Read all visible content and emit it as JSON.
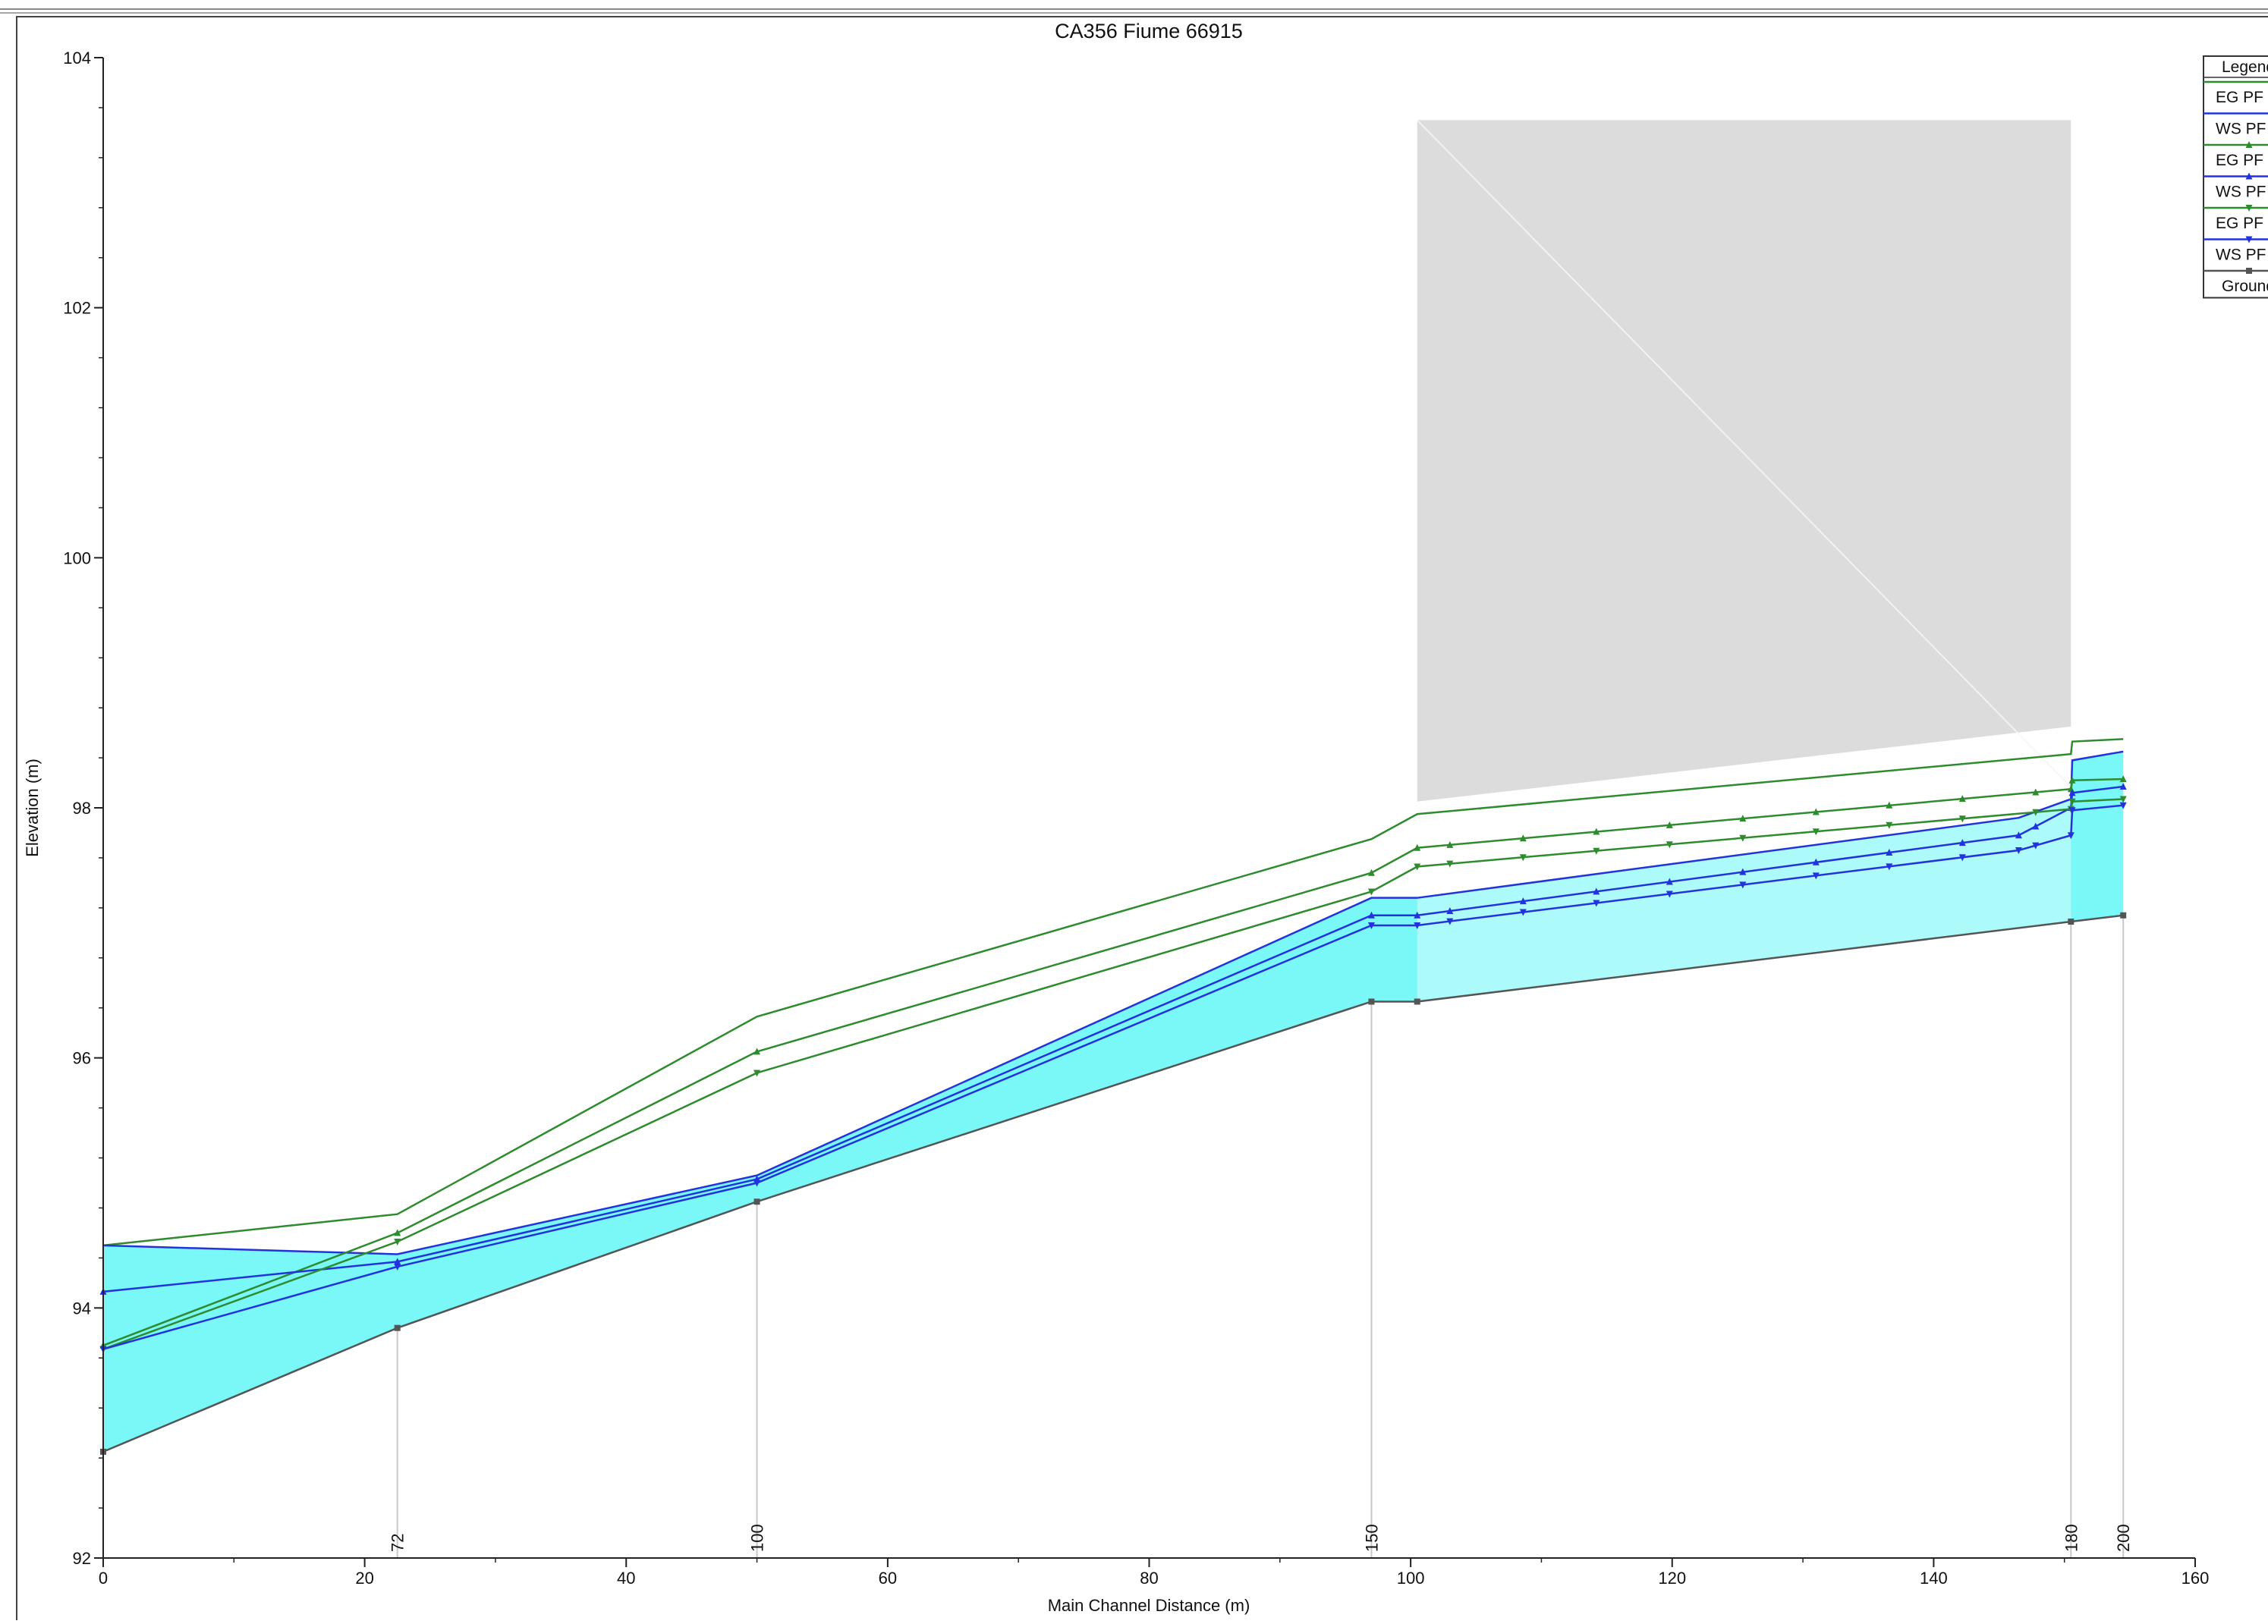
{
  "chart_data": {
    "type": "line",
    "title": "CA356 Fiume 66915",
    "xlabel": "Main Channel Distance (m)",
    "ylabel": "Elevation (m)",
    "xlim": [
      0,
      160
    ],
    "ylim": [
      92,
      104
    ],
    "x_ticks": [
      0,
      20,
      40,
      60,
      80,
      100,
      120,
      140,
      160
    ],
    "y_ticks": [
      92,
      94,
      96,
      98,
      100,
      102,
      104
    ],
    "grid": false,
    "legend": {
      "title": "Legend",
      "placement": "top-right",
      "entries": [
        {
          "label": "EG PF",
          "color": "#2e8b2e",
          "marker": "none"
        },
        {
          "label": "WS PF",
          "color": "#2233dd",
          "marker": "none"
        },
        {
          "label": "EG PF",
          "color": "#2e8b2e",
          "marker": "triangle"
        },
        {
          "label": "WS PF",
          "color": "#2233dd",
          "marker": "triangle"
        },
        {
          "label": "EG PF",
          "color": "#2e8b2e",
          "marker": "triangle-down"
        },
        {
          "label": "WS PF",
          "color": "#2233dd",
          "marker": "triangle-down"
        },
        {
          "label": "Ground",
          "color": "#555555",
          "marker": "square"
        }
      ]
    },
    "station_labels": [
      {
        "x": 22.5,
        "label": "72"
      },
      {
        "x": 50,
        "label": "100"
      },
      {
        "x": 97,
        "label": "150"
      },
      {
        "x": 150.5,
        "label": "180"
      },
      {
        "x": 154.5,
        "label": "200"
      }
    ],
    "structure": {
      "x_start": 100.5,
      "x_end": 150.5,
      "top": 103.5,
      "bottom_start": 98.05,
      "bottom_end": 98.65
    },
    "series": [
      {
        "name": "EG PF",
        "color": "#2e8b2e",
        "marker": "none",
        "x": [
          0,
          22.5,
          50,
          97,
          100.5,
          150.5,
          150.6,
          154.5
        ],
        "y": [
          94.5,
          94.75,
          96.33,
          97.75,
          97.95,
          98.43,
          98.53,
          98.55
        ]
      },
      {
        "name": "WS PF",
        "color": "#2233dd",
        "marker": "none",
        "x": [
          0,
          22.5,
          50,
          97,
          100.5,
          146.5,
          150.5,
          150.6,
          154.5
        ],
        "y": [
          94.5,
          94.43,
          95.06,
          97.28,
          97.28,
          97.92,
          98.07,
          98.38,
          98.45
        ]
      },
      {
        "name": "EG PF",
        "color": "#2e8b2e",
        "marker": "triangle",
        "x": [
          0,
          22.5,
          50,
          97,
          100.5,
          150.5,
          150.6,
          154.5
        ],
        "y": [
          93.7,
          94.6,
          96.05,
          97.48,
          97.68,
          98.15,
          98.22,
          98.23
        ]
      },
      {
        "name": "WS PF",
        "color": "#2233dd",
        "marker": "triangle",
        "x": [
          0,
          22.5,
          50,
          97,
          100.5,
          146.5,
          150.5,
          150.6,
          154.5
        ],
        "y": [
          94.13,
          94.37,
          95.03,
          97.14,
          97.14,
          97.78,
          98.0,
          98.12,
          98.17
        ]
      },
      {
        "name": "EG PF",
        "color": "#2e8b2e",
        "marker": "triangle-down",
        "x": [
          0,
          22.5,
          50,
          97,
          100.5,
          150.5,
          150.6,
          154.5
        ],
        "y": [
          93.67,
          94.53,
          95.88,
          97.33,
          97.53,
          97.99,
          98.05,
          98.07
        ]
      },
      {
        "name": "WS PF",
        "color": "#2233dd",
        "marker": "triangle-down",
        "x": [
          0,
          22.5,
          50,
          97,
          100.5,
          146.5,
          150.5,
          150.6,
          154.5
        ],
        "y": [
          93.67,
          94.33,
          95.0,
          97.06,
          97.06,
          97.66,
          97.78,
          97.98,
          98.02
        ]
      },
      {
        "name": "Ground",
        "color": "#555555",
        "marker": "square",
        "x": [
          0,
          22.5,
          50,
          97,
          100.5,
          150.5,
          154.5
        ],
        "y": [
          92.85,
          93.84,
          94.85,
          96.45,
          96.45,
          97.09,
          97.14
        ]
      }
    ]
  }
}
